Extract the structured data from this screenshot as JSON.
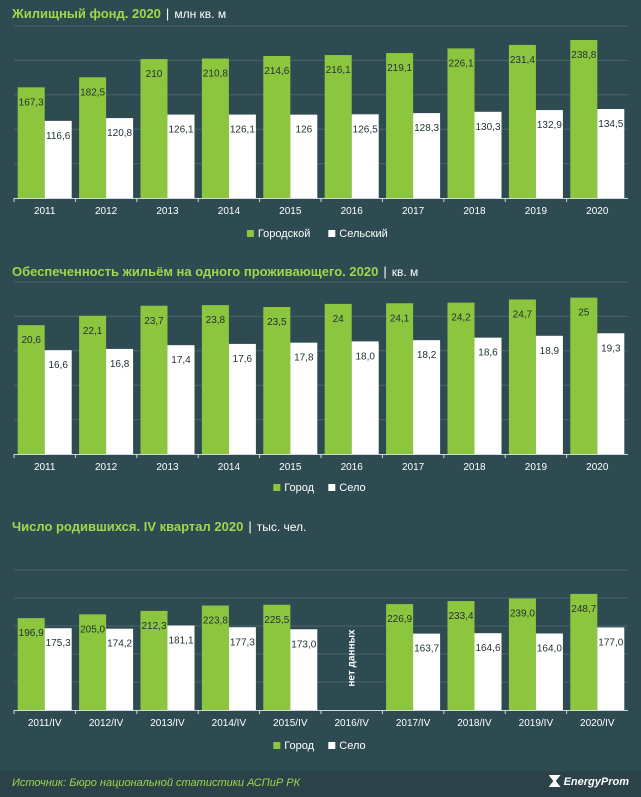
{
  "source": "Источник: Бюро национальной  статистики АСПиР РК",
  "brand": "EnergyProm",
  "colors": {
    "green": "#8cc63e",
    "white": "#ffffff",
    "bg": "#2f4b52",
    "grid": "#4a656b",
    "axis": "#cfd8da"
  },
  "chart_data": [
    {
      "type": "bar",
      "title": "Жилищный фонд. 2020",
      "unit": "млн кв. м",
      "categories": [
        "2011",
        "2012",
        "2013",
        "2014",
        "2015",
        "2016",
        "2017",
        "2018",
        "2019",
        "2020"
      ],
      "series": [
        {
          "name": "Городской",
          "values": [
            167.3,
            182.5,
            210,
            210.8,
            214.6,
            216.1,
            219.1,
            226.1,
            231.4,
            238.8
          ],
          "labels": [
            "167,3",
            "182,5",
            "210",
            "210,8",
            "214,6",
            "216,1",
            "219,1",
            "226,1",
            "231,4",
            "238,8"
          ]
        },
        {
          "name": "Сельский",
          "values": [
            116.6,
            120.8,
            126.1,
            126.1,
            126,
            126.5,
            128.3,
            130.3,
            132.9,
            134.5
          ],
          "labels": [
            "116,6",
            "120,8",
            "126,1",
            "126,1",
            "126",
            "126,5",
            "128,3",
            "130,3",
            "132,9",
            "134,5"
          ]
        }
      ],
      "ylim": [
        0,
        260
      ],
      "grid": true,
      "legend": "bottom-center"
    },
    {
      "type": "bar",
      "title": "Обеспеченность жильём на одного проживающего. 2020",
      "unit": "кв. м",
      "categories": [
        "2011",
        "2012",
        "2013",
        "2014",
        "2015",
        "2016",
        "2017",
        "2018",
        "2019",
        "2020"
      ],
      "series": [
        {
          "name": "Город",
          "values": [
            20.6,
            22.1,
            23.7,
            23.8,
            23.5,
            24,
            24.1,
            24.2,
            24.7,
            25
          ],
          "labels": [
            "20,6",
            "22,1",
            "23,7",
            "23,8",
            "23,5",
            "24",
            "24,1",
            "24,2",
            "24,7",
            "25"
          ]
        },
        {
          "name": "Село",
          "values": [
            16.6,
            16.8,
            17.4,
            17.6,
            17.8,
            18.0,
            18.2,
            18.6,
            18.9,
            19.3
          ],
          "labels": [
            "16,6",
            "16,8",
            "17,4",
            "17,6",
            "17,8",
            "18,0",
            "18,2",
            "18,6",
            "18,9",
            "19,3"
          ]
        }
      ],
      "ylim": [
        0,
        27.5
      ],
      "grid": true,
      "legend": "bottom-center"
    },
    {
      "type": "bar",
      "title": "Число родившихся. IV квартал 2020",
      "unit": "тыс. чел.",
      "categories": [
        "2011/IV",
        "2012/IV",
        "2013/IV",
        "2014/IV",
        "2015/IV",
        "2016/IV",
        "2017/IV",
        "2018/IV",
        "2019/IV",
        "2020/IV"
      ],
      "series": [
        {
          "name": "Город",
          "values": [
            196.9,
            205.0,
            212.3,
            223.8,
            225.5,
            null,
            226.9,
            233.4,
            239.0,
            248.7
          ],
          "labels": [
            "196,9",
            "205,0",
            "212,3",
            "223,8",
            "225,5",
            "",
            "226,9",
            "233,4",
            "239,0",
            "248,7"
          ]
        },
        {
          "name": "Село",
          "values": [
            175.3,
            174.2,
            181.1,
            177.3,
            173.0,
            null,
            163.7,
            164.6,
            164.0,
            177.0
          ],
          "labels": [
            "175,3",
            "174,2",
            "181,1",
            "177,3",
            "173,0",
            "",
            "163,7",
            "164,6",
            "164,0",
            "177,0"
          ]
        }
      ],
      "annotations": [
        {
          "category": "2016/IV",
          "text": "нет данных"
        }
      ],
      "ylim": [
        0,
        300
      ],
      "grid": true,
      "legend": "bottom-center"
    }
  ]
}
